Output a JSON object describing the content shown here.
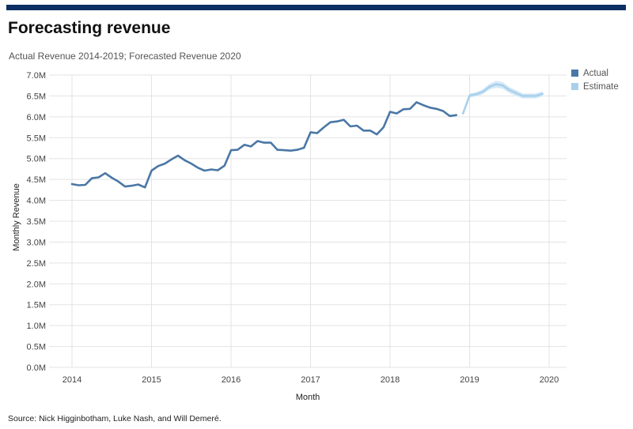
{
  "header": {
    "title": "Forecasting revenue",
    "subtitle": "Actual Revenue 2014-2019; Forecasted Revenue 2020"
  },
  "footer": {
    "source": "Source: Nick Higginbotham, Luke Nash, and Will Demeré."
  },
  "colors": {
    "actual": "#4a77a5",
    "estimate": "#a8d0ec",
    "band": "#d6e9f7",
    "grid": "#e3e3e3",
    "top_bar": "#0b2e63"
  },
  "chart_data": {
    "type": "line",
    "xlabel": "Month",
    "ylabel": "Monthly Revenue",
    "xlim": [
      2014,
      2020
    ],
    "ylim": [
      0,
      7000000
    ],
    "grid": true,
    "legend_position": "top-right",
    "x_ticks": [
      2014,
      2015,
      2016,
      2017,
      2018,
      2019,
      2020
    ],
    "x_tick_labels": [
      "2014",
      "2015",
      "2016",
      "2017",
      "2018",
      "2019",
      "2020"
    ],
    "y_ticks": [
      0,
      500000,
      1000000,
      1500000,
      2000000,
      2500000,
      3000000,
      3500000,
      4000000,
      4500000,
      5000000,
      5500000,
      6000000,
      6500000,
      7000000
    ],
    "y_tick_labels": [
      "0.0M",
      "0.5M",
      "1.0M",
      "1.5M",
      "2.0M",
      "2.5M",
      "3.0M",
      "3.5M",
      "4.0M",
      "4.5M",
      "5.0M",
      "5.5M",
      "6.0M",
      "6.5M",
      "7.0M"
    ],
    "series": [
      {
        "name": "Actual",
        "x": [
          2014.0,
          2014.083,
          2014.167,
          2014.25,
          2014.333,
          2014.417,
          2014.5,
          2014.583,
          2014.667,
          2014.75,
          2014.833,
          2014.917,
          2015.0,
          2015.083,
          2015.167,
          2015.25,
          2015.333,
          2015.417,
          2015.5,
          2015.583,
          2015.667,
          2015.75,
          2015.833,
          2015.917,
          2016.0,
          2016.083,
          2016.167,
          2016.25,
          2016.333,
          2016.417,
          2016.5,
          2016.583,
          2016.667,
          2016.75,
          2016.833,
          2016.917,
          2017.0,
          2017.083,
          2017.167,
          2017.25,
          2017.333,
          2017.417,
          2017.5,
          2017.583,
          2017.667,
          2017.75,
          2017.833,
          2017.917,
          2018.0,
          2018.083,
          2018.167,
          2018.25,
          2018.333,
          2018.417,
          2018.5,
          2018.583,
          2018.667,
          2018.75,
          2018.833
        ],
        "values": [
          4390000,
          4360000,
          4370000,
          4530000,
          4550000,
          4650000,
          4540000,
          4450000,
          4330000,
          4350000,
          4380000,
          4310000,
          4710000,
          4820000,
          4880000,
          4980000,
          5070000,
          4960000,
          4880000,
          4780000,
          4710000,
          4740000,
          4720000,
          4830000,
          5200000,
          5210000,
          5330000,
          5290000,
          5420000,
          5380000,
          5380000,
          5210000,
          5200000,
          5190000,
          5210000,
          5260000,
          5630000,
          5610000,
          5750000,
          5870000,
          5890000,
          5930000,
          5770000,
          5790000,
          5670000,
          5670000,
          5580000,
          5750000,
          6120000,
          6080000,
          6180000,
          6190000,
          6350000,
          6280000,
          6220000,
          6190000,
          6140000,
          6020000,
          6040000
        ]
      },
      {
        "name": "Estimate",
        "x": [
          2018.917,
          2019.0,
          2019.083,
          2019.167,
          2019.25,
          2019.333,
          2019.417,
          2019.5,
          2019.583,
          2019.667,
          2019.75,
          2019.833,
          2019.917
        ],
        "values": [
          6080000,
          6510000,
          6540000,
          6600000,
          6720000,
          6780000,
          6750000,
          6640000,
          6570000,
          6500000,
          6500000,
          6500000,
          6550000
        ],
        "band_low": [
          6070000,
          6460000,
          6490000,
          6540000,
          6650000,
          6700000,
          6670000,
          6570000,
          6500000,
          6440000,
          6440000,
          6440000,
          6490000
        ],
        "band_high": [
          6090000,
          6560000,
          6590000,
          6660000,
          6790000,
          6860000,
          6830000,
          6710000,
          6640000,
          6560000,
          6560000,
          6560000,
          6610000
        ]
      }
    ]
  }
}
